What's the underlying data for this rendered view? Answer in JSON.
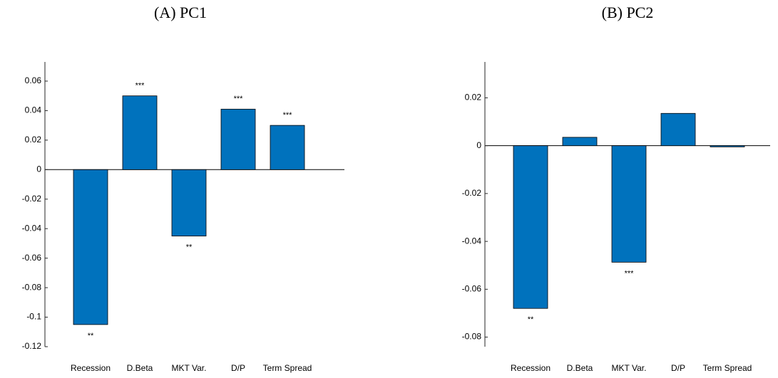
{
  "chart_data": [
    {
      "type": "bar",
      "title": "(A) PC1",
      "categories": [
        "Recession",
        "D.Beta",
        "MKT Var.",
        "D/P",
        "Term Spread"
      ],
      "values": [
        -0.105,
        0.05,
        -0.045,
        0.041,
        0.03
      ],
      "annotations": [
        "**",
        "***",
        "**",
        "***",
        "***"
      ],
      "color": "#0072bd",
      "ylim": [
        -0.12,
        0.073
      ],
      "yticks": [
        -0.12,
        -0.1,
        -0.08,
        -0.06,
        -0.04,
        -0.02,
        0,
        0.02,
        0.04,
        0.06
      ]
    },
    {
      "type": "bar",
      "title": "(B) PC2",
      "categories": [
        "Recession",
        "D.Beta",
        "MKT Var.",
        "D/P",
        "Term Spread"
      ],
      "values": [
        -0.068,
        0.0035,
        -0.0487,
        0.0135,
        -0.0005
      ],
      "annotations": [
        "**",
        null,
        "***",
        null,
        null
      ],
      "color": "#0072bd",
      "ylim": [
        -0.084,
        0.035
      ],
      "yticks": [
        -0.08,
        -0.06,
        -0.04,
        -0.02,
        0,
        0.02
      ]
    }
  ]
}
